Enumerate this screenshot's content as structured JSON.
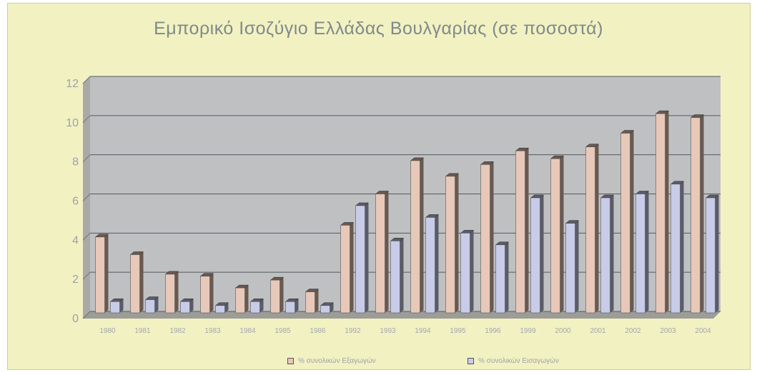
{
  "chart_data": {
    "type": "bar",
    "title": "Εμπορικό Ισοζύγιο Ελλάδας Βουλγαρίας (σε ποσοστά)",
    "categories": [
      "1980",
      "1981",
      "1982",
      "1983",
      "1984",
      "1985",
      "1986",
      "1992",
      "1993",
      "1994",
      "1995",
      "1996",
      "1999",
      "2000",
      "2001",
      "2002",
      "2003",
      "2004"
    ],
    "series": [
      {
        "name": "% συνολικών Εξαγωγών",
        "color": "#e8c8b8",
        "values": [
          3.8,
          2.9,
          1.9,
          1.8,
          1.2,
          1.6,
          1.0,
          4.4,
          6.0,
          7.7,
          6.9,
          7.5,
          8.2,
          7.8,
          8.4,
          9.1,
          10.1,
          9.9
        ]
      },
      {
        "name": "% συνολικών Εισαγωγών",
        "color": "#c8cce8",
        "values": [
          0.5,
          0.6,
          0.5,
          0.3,
          0.5,
          0.5,
          0.3,
          5.4,
          3.6,
          4.8,
          4.0,
          3.4,
          5.8,
          4.5,
          5.8,
          6.0,
          6.5,
          5.8
        ]
      }
    ],
    "yticks": [
      "0",
      "2",
      "4",
      "6",
      "8",
      "10",
      "12"
    ],
    "ylim": [
      0,
      12
    ],
    "grid": true,
    "legend_position": "bottom"
  }
}
